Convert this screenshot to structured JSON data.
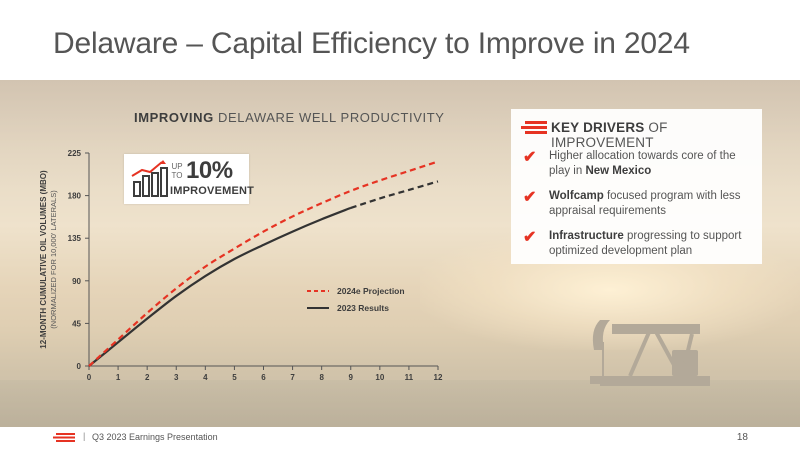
{
  "slide": {
    "title": "Delaware – Capital Efficiency to Improve in 2024",
    "footer_text": "Q3 2023 Earnings Presentation",
    "footer_separator": "|",
    "page_number": "18",
    "brand_color": "#e63323"
  },
  "badge": {
    "up_to": "UP TO",
    "percent": "10%",
    "label": "IMPROVEMENT",
    "icon": "bar-chart-trend-up-icon"
  },
  "drivers": {
    "header_bold": "KEY DRIVERS",
    "header_rest": " OF IMPROVEMENT",
    "items": [
      {
        "pre": "Higher allocation towards core of the play in ",
        "bold": "New Mexico",
        "post": ""
      },
      {
        "pre": "",
        "bold": "Wolfcamp",
        "post": " focused program with less appraisal requirements"
      },
      {
        "pre": "",
        "bold": "Infrastructure",
        "post": " progressing to support optimized development plan"
      }
    ]
  },
  "chart_data": {
    "type": "line",
    "title_bold": "IMPROVING",
    "title_rest": " DELAWARE WELL PRODUCTIVITY",
    "ylabel": "12-MONTH CUMULATIVE OIL VOLUMES (MBO)",
    "ylabel_sub": "(NORMALIZED FOR 10,000' LATERALS)",
    "xlabel": "",
    "x": [
      0,
      1,
      2,
      3,
      4,
      5,
      6,
      7,
      8,
      9,
      10,
      11,
      12
    ],
    "x_ticks": [
      "0",
      "1",
      "2",
      "3",
      "4",
      "5",
      "6",
      "7",
      "8",
      "9",
      "10",
      "11",
      "12"
    ],
    "y_ticks": [
      "0",
      "45",
      "90",
      "135",
      "180",
      "225"
    ],
    "xlim": [
      0,
      12
    ],
    "ylim": [
      0,
      225
    ],
    "grid": false,
    "legend_placement": "lower-right",
    "series": [
      {
        "name": "2024e Projection",
        "style": "dashed",
        "color": "#e63323",
        "values": [
          0,
          28,
          56,
          82,
          105,
          124,
          142,
          158,
          172,
          185,
          196,
          206,
          216
        ]
      },
      {
        "name": "2023 Results",
        "style": "solid",
        "color": "#333333",
        "dashed_from_x": 9,
        "values": [
          0,
          25,
          50,
          74,
          95,
          113,
          128,
          142,
          155,
          167,
          177,
          186,
          195
        ]
      }
    ]
  }
}
